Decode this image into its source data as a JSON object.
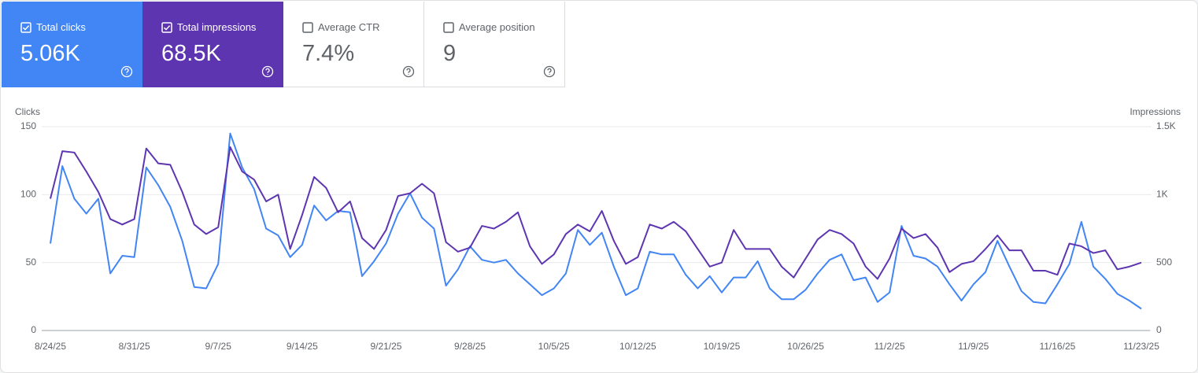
{
  "cards": [
    {
      "label": "Total clicks",
      "value": "5.06K",
      "checked": true,
      "color": "#4285f4"
    },
    {
      "label": "Total impressions",
      "value": "68.5K",
      "checked": true,
      "color": "#5e35b1"
    },
    {
      "label": "Average CTR",
      "value": "7.4%",
      "checked": false,
      "color": "#ffffff"
    },
    {
      "label": "Average position",
      "value": "9",
      "checked": false,
      "color": "#ffffff"
    }
  ],
  "chart_data": {
    "type": "line",
    "y_label": "Clicks",
    "y2_label": "Impressions",
    "categories": [
      "8/24/25",
      null,
      null,
      null,
      null,
      null,
      null,
      "8/31/25",
      null,
      null,
      null,
      null,
      null,
      null,
      "9/7/25",
      null,
      null,
      null,
      null,
      null,
      null,
      "9/14/25",
      null,
      null,
      null,
      null,
      null,
      null,
      "9/21/25",
      null,
      null,
      null,
      null,
      null,
      null,
      "9/28/25",
      null,
      null,
      null,
      null,
      null,
      null,
      "10/5/25",
      null,
      null,
      null,
      null,
      null,
      null,
      "10/12/25",
      null,
      null,
      null,
      null,
      null,
      null,
      "10/19/25",
      null,
      null,
      null,
      null,
      null,
      null,
      "10/26/25",
      null,
      null,
      null,
      null,
      null,
      null,
      "11/2/25",
      null,
      null,
      null,
      null,
      null,
      null,
      "11/9/25",
      null,
      null,
      null,
      null,
      null,
      null,
      "11/16/25",
      null,
      null,
      null,
      null,
      null,
      null,
      "11/23/25"
    ],
    "series": [
      {
        "name": "Clicks",
        "color": "#4285f4",
        "values": [
          64,
          121,
          97,
          86,
          97,
          42,
          55,
          54,
          120,
          107,
          91,
          66,
          32,
          31,
          49,
          145,
          120,
          104,
          75,
          70,
          54,
          63,
          92,
          81,
          88,
          87,
          40,
          51,
          64,
          86,
          101,
          83,
          75,
          33,
          45,
          62,
          52,
          50,
          52,
          42,
          34,
          26,
          31,
          42,
          74,
          63,
          72,
          47,
          26,
          31,
          58,
          56,
          56,
          41,
          31,
          40,
          28,
          39,
          39,
          51,
          31,
          23,
          23,
          30,
          42,
          52,
          56,
          37,
          39,
          21,
          28,
          77,
          55,
          53,
          47,
          34,
          22,
          34,
          43,
          66,
          47,
          29,
          21,
          20,
          34,
          49,
          80,
          47,
          38,
          27,
          22,
          16
        ]
      },
      {
        "name": "Impressions",
        "color": "#5e35b1",
        "axis": "y2",
        "values": [
          970,
          1320,
          1310,
          1170,
          1020,
          820,
          780,
          820,
          1340,
          1230,
          1220,
          1020,
          780,
          710,
          760,
          1350,
          1170,
          1110,
          950,
          1000,
          600,
          850,
          1130,
          1050,
          870,
          950,
          680,
          600,
          740,
          990,
          1010,
          1080,
          1010,
          650,
          580,
          610,
          770,
          750,
          800,
          870,
          620,
          490,
          560,
          710,
          780,
          730,
          880,
          660,
          490,
          540,
          780,
          750,
          800,
          730,
          600,
          470,
          500,
          740,
          600,
          600,
          600,
          470,
          390,
          530,
          670,
          740,
          710,
          640,
          470,
          380,
          530,
          750,
          680,
          710,
          610,
          430,
          490,
          510,
          600,
          700,
          590,
          590,
          440,
          440,
          410,
          640,
          620,
          570,
          590,
          450,
          470,
          500
        ]
      }
    ],
    "ylim": [
      0,
      150
    ],
    "yticks": [
      0,
      50,
      100,
      150
    ],
    "y2lim": [
      0,
      1500
    ],
    "y2ticks": [
      0,
      500,
      {
        "value": 1000,
        "label": "1K"
      },
      {
        "value": 1500,
        "label": "1.5K"
      }
    ],
    "grid": true
  }
}
